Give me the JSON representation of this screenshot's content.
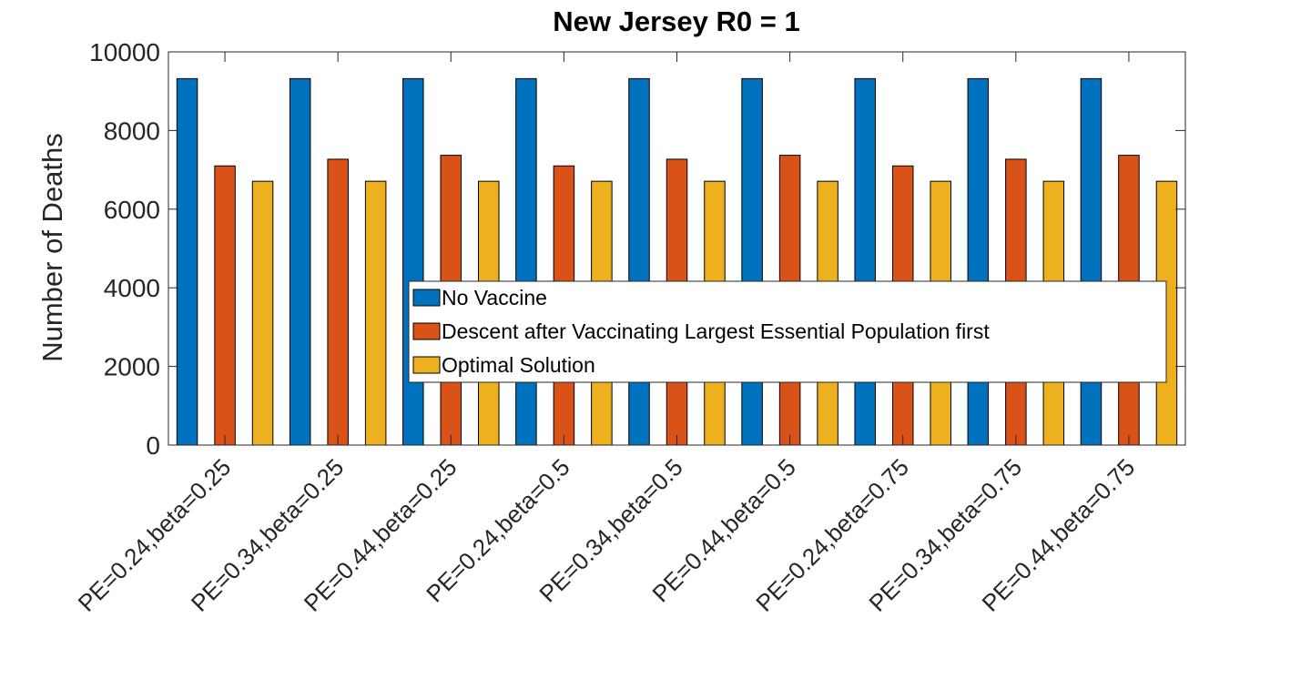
{
  "chart_data": {
    "type": "bar",
    "title": "New Jersey R0 = 1",
    "ylabel": "Number of Deaths",
    "xlabel": "",
    "ylim": [
      0,
      10000
    ],
    "yticks": [
      0,
      2000,
      4000,
      6000,
      8000,
      10000
    ],
    "grid": false,
    "legend_position": "center-right",
    "categories": [
      "PE=0.24,beta=0.25",
      "PE=0.34,beta=0.25",
      "PE=0.44,beta=0.25",
      "PE=0.24,beta=0.5",
      "PE=0.34,beta=0.5",
      "PE=0.44,beta=0.5",
      "PE=0.24,beta=0.75",
      "PE=0.34,beta=0.75",
      "PE=0.44,beta=0.75"
    ],
    "series": [
      {
        "name": "No Vaccine",
        "color": "#0072BD",
        "values": [
          9320,
          9320,
          9320,
          9320,
          9320,
          9320,
          9320,
          9320,
          9320
        ]
      },
      {
        "name": "Descent after Vaccinating Largest Essential Population first",
        "color": "#D95319",
        "values": [
          7100,
          7270,
          7370,
          7100,
          7270,
          7370,
          7100,
          7270,
          7370
        ]
      },
      {
        "name": "Optimal Solution",
        "color": "#EDB120",
        "values": [
          6710,
          6710,
          6710,
          6710,
          6710,
          6710,
          6710,
          6710,
          6710
        ]
      }
    ]
  }
}
